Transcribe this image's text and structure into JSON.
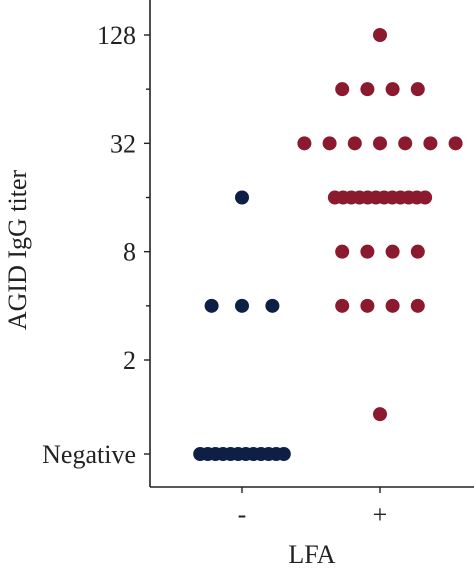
{
  "chart_data": {
    "type": "scatter",
    "title": "",
    "xlabel": "LFA",
    "ylabel": "AGID IgG titer",
    "y_scale": "log2",
    "categories": [
      "-",
      "+"
    ],
    "y_ticks": [
      {
        "label": "Negative",
        "value": "Negative"
      },
      {
        "label": "2",
        "value": 2
      },
      {
        "label": "8",
        "value": 8
      },
      {
        "label": "32",
        "value": 32
      },
      {
        "label": "128",
        "value": 128
      }
    ],
    "y_minor_ticks": [
      4,
      16,
      64
    ],
    "grid": false,
    "legend": "none",
    "colors": {
      "-": "#0d1f44",
      "+": "#8b1a2e"
    },
    "series": [
      {
        "category": "-",
        "points": [
          {
            "titer": "Negative",
            "count": 12
          },
          {
            "titer": 4,
            "count": 3
          },
          {
            "titer": 16,
            "count": 1
          }
        ]
      },
      {
        "category": "+",
        "points": [
          {
            "titer": 1,
            "count": 1
          },
          {
            "titer": 4,
            "count": 4
          },
          {
            "titer": 8,
            "count": 4
          },
          {
            "titer": 16,
            "count": 12
          },
          {
            "titer": 32,
            "count": 7
          },
          {
            "titer": 64,
            "count": 4
          },
          {
            "titer": 128,
            "count": 1
          }
        ]
      }
    ]
  }
}
